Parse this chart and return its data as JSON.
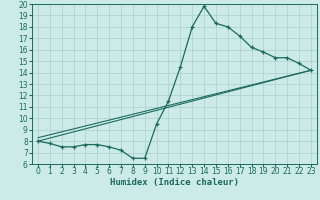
{
  "title": "",
  "xlabel": "Humidex (Indice chaleur)",
  "xlim": [
    -0.5,
    23.5
  ],
  "ylim": [
    6,
    20
  ],
  "xticks": [
    0,
    1,
    2,
    3,
    4,
    5,
    6,
    7,
    8,
    9,
    10,
    11,
    12,
    13,
    14,
    15,
    16,
    17,
    18,
    19,
    20,
    21,
    22,
    23
  ],
  "yticks": [
    6,
    7,
    8,
    9,
    10,
    11,
    12,
    13,
    14,
    15,
    16,
    17,
    18,
    19,
    20
  ],
  "bg_color": "#cceae7",
  "grid_color": "#aacfcc",
  "line_color": "#1a6b5e",
  "line1_x": [
    0,
    1,
    2,
    3,
    4,
    5,
    6,
    7,
    8,
    9,
    10,
    11,
    12,
    13,
    14,
    15,
    16,
    17,
    18,
    19,
    20,
    21,
    22,
    23
  ],
  "line1_y": [
    8,
    7.8,
    7.5,
    7.5,
    7.7,
    7.7,
    7.5,
    7.2,
    6.5,
    6.5,
    9.5,
    11.5,
    14.5,
    18,
    19.8,
    18.3,
    18,
    17.2,
    16.2,
    15.8,
    15.3,
    15.3,
    14.8,
    14.2
  ],
  "line2_x": [
    0,
    23
  ],
  "line2_y": [
    8,
    14.2
  ],
  "line3_x": [
    0,
    23
  ],
  "line3_y": [
    8,
    14.2
  ],
  "figsize": [
    3.2,
    2.0
  ],
  "dpi": 100,
  "tick_fontsize": 5.5,
  "xlabel_fontsize": 6.5
}
